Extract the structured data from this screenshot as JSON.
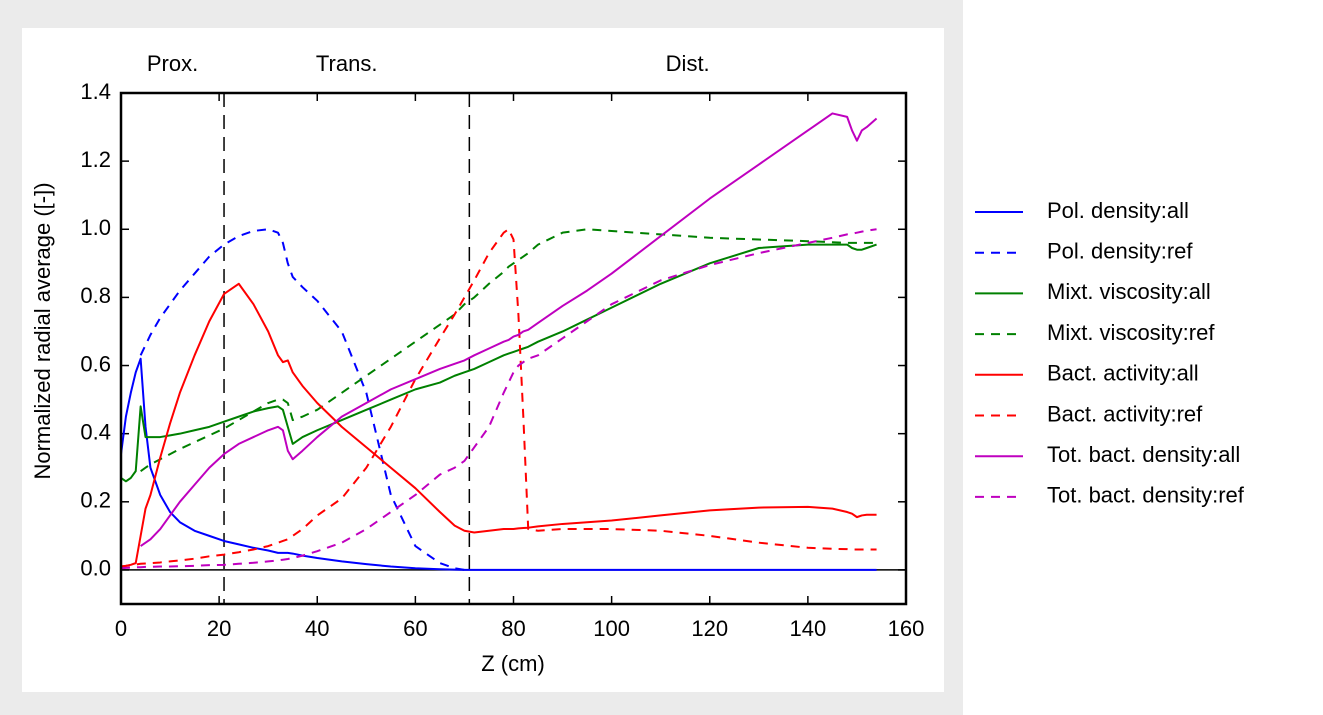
{
  "chart_data": {
    "type": "line",
    "xlabel": "Z (cm)",
    "ylabel": "Normalized radial average ([-])",
    "regions": [
      "Prox.",
      "Trans.",
      "Dist."
    ],
    "region_bounds": [
      21,
      71
    ],
    "xlim": [
      0,
      160
    ],
    "ylim": [
      -0.1,
      1.4
    ],
    "xticks": [
      0,
      20,
      40,
      60,
      80,
      100,
      120,
      140,
      160
    ],
    "yticks": [
      {
        "value": 0,
        "label": "0.0"
      },
      0.2,
      0.4,
      0.6,
      0.8,
      {
        "value": 1,
        "label": "1.0"
      },
      1.2,
      1.4
    ],
    "legend": "outside right",
    "x": [
      0,
      1,
      2,
      3,
      4,
      5,
      6,
      8,
      10,
      12,
      15,
      18,
      21,
      24,
      27,
      30,
      32,
      33,
      34,
      35,
      37,
      40,
      45,
      50,
      55,
      60,
      65,
      68,
      70,
      72,
      75,
      78,
      79,
      80,
      81,
      82,
      83,
      85,
      90,
      95,
      100,
      110,
      120,
      130,
      140,
      145,
      148,
      149,
      150,
      151,
      152,
      154
    ],
    "series": [
      {
        "name": "Pol. density:all",
        "color": "#0000ff",
        "style": "solid",
        "values": [
          0.34,
          0.45,
          0.52,
          0.58,
          0.62,
          0.42,
          0.3,
          0.22,
          0.17,
          0.14,
          0.115,
          0.1,
          0.085,
          0.075,
          0.065,
          0.057,
          0.05,
          0.05,
          0.05,
          0.048,
          0.042,
          0.035,
          0.025,
          0.017,
          0.01,
          0.005,
          0.002,
          0.001,
          0,
          0,
          0,
          0,
          0,
          0,
          0,
          0,
          0,
          0,
          0,
          0,
          0,
          0,
          0,
          0,
          0,
          0,
          0,
          0,
          0,
          0,
          0,
          0
        ]
      },
      {
        "name": "Pol. density:ref",
        "color": "#0000ff",
        "style": "dashed",
        "values": [
          null,
          null,
          null,
          null,
          0.63,
          0.66,
          0.69,
          0.74,
          0.78,
          0.82,
          0.87,
          0.92,
          0.955,
          0.98,
          0.995,
          1.0,
          0.99,
          0.96,
          0.9,
          0.86,
          0.83,
          0.79,
          0.7,
          0.52,
          0.22,
          0.07,
          0.02,
          0.005,
          0,
          null,
          null,
          null,
          null,
          null,
          null,
          null,
          null,
          null,
          null,
          null,
          null,
          null,
          null,
          null,
          null,
          null,
          null,
          null,
          null,
          null,
          null,
          null
        ]
      },
      {
        "name": "Mixt. viscosity:all",
        "color": "#008000",
        "style": "solid",
        "values": [
          0.27,
          0.26,
          0.27,
          0.29,
          0.48,
          0.39,
          0.39,
          0.39,
          0.395,
          0.4,
          0.41,
          0.42,
          0.435,
          0.45,
          0.465,
          0.475,
          0.48,
          0.47,
          0.42,
          0.37,
          0.39,
          0.41,
          0.44,
          0.47,
          0.5,
          0.53,
          0.55,
          0.57,
          0.58,
          0.59,
          0.61,
          0.63,
          0.635,
          0.64,
          0.645,
          0.65,
          0.655,
          0.67,
          0.7,
          0.735,
          0.77,
          0.84,
          0.9,
          0.945,
          0.955,
          0.955,
          0.955,
          0.945,
          0.94,
          0.94,
          0.945,
          0.955
        ]
      },
      {
        "name": "Mixt. viscosity:ref",
        "color": "#008000",
        "style": "dashed",
        "values": [
          null,
          null,
          null,
          null,
          0.29,
          0.3,
          0.31,
          0.325,
          0.34,
          0.355,
          0.375,
          0.395,
          0.415,
          0.44,
          0.465,
          0.49,
          0.5,
          0.5,
          0.49,
          0.44,
          0.45,
          0.47,
          0.52,
          0.57,
          0.62,
          0.67,
          0.72,
          0.75,
          0.78,
          0.8,
          0.84,
          0.875,
          0.89,
          0.9,
          0.91,
          0.92,
          0.93,
          0.955,
          0.99,
          1.0,
          0.995,
          0.985,
          0.975,
          0.97,
          0.965,
          0.962,
          0.96,
          0.96,
          0.96,
          0.96,
          0.96,
          0.96
        ]
      },
      {
        "name": "Bact. activity:all",
        "color": "#ff0000",
        "style": "solid",
        "values": [
          0.01,
          0.012,
          0.015,
          0.02,
          0.1,
          0.18,
          0.22,
          0.33,
          0.43,
          0.52,
          0.63,
          0.73,
          0.81,
          0.84,
          0.78,
          0.7,
          0.63,
          0.61,
          0.615,
          0.58,
          0.54,
          0.49,
          0.42,
          0.36,
          0.3,
          0.24,
          0.17,
          0.13,
          0.115,
          0.11,
          0.115,
          0.12,
          0.12,
          0.12,
          0.122,
          0.123,
          0.124,
          0.128,
          0.135,
          0.14,
          0.145,
          0.16,
          0.175,
          0.183,
          0.185,
          0.18,
          0.17,
          0.165,
          0.155,
          0.16,
          0.162,
          0.162
        ]
      },
      {
        "name": "Bact. activity:ref",
        "color": "#ff0000",
        "style": "dashed",
        "values": [
          0.01,
          0.012,
          0.014,
          0.016,
          0.018,
          0.019,
          0.02,
          0.022,
          0.025,
          0.028,
          0.033,
          0.04,
          0.045,
          0.052,
          0.06,
          0.07,
          0.08,
          0.085,
          0.09,
          0.1,
          0.12,
          0.16,
          0.21,
          0.3,
          0.42,
          0.56,
          0.68,
          0.75,
          0.8,
          0.85,
          0.93,
          0.99,
          1.0,
          0.97,
          0.75,
          0.45,
          0.12,
          0.115,
          0.12,
          0.12,
          0.12,
          0.115,
          0.1,
          0.08,
          0.065,
          0.062,
          0.061,
          0.06,
          0.06,
          0.06,
          0.06,
          0.06
        ]
      },
      {
        "name": "Tot. bact. density:all",
        "color": "#bf00bf",
        "style": "solid",
        "values": [
          null,
          null,
          null,
          null,
          0.07,
          0.08,
          0.09,
          0.12,
          0.16,
          0.2,
          0.25,
          0.3,
          0.34,
          0.37,
          0.39,
          0.41,
          0.42,
          0.41,
          0.35,
          0.325,
          0.35,
          0.39,
          0.45,
          0.49,
          0.53,
          0.56,
          0.59,
          0.605,
          0.615,
          0.63,
          0.65,
          0.67,
          0.675,
          0.685,
          0.69,
          0.7,
          0.705,
          0.725,
          0.775,
          0.82,
          0.87,
          0.98,
          1.09,
          1.19,
          1.29,
          1.34,
          1.33,
          1.29,
          1.26,
          1.29,
          1.3,
          1.325
        ]
      },
      {
        "name": "Tot. bact. density:ref",
        "color": "#bf00bf",
        "style": "dashed",
        "values": [
          0.005,
          0.006,
          0.007,
          0.008,
          0.008,
          0.009,
          0.009,
          0.01,
          0.01,
          0.011,
          0.012,
          0.014,
          0.015,
          0.018,
          0.021,
          0.025,
          0.028,
          0.03,
          0.032,
          0.035,
          0.042,
          0.055,
          0.08,
          0.12,
          0.17,
          0.22,
          0.28,
          0.3,
          0.32,
          0.36,
          0.42,
          0.52,
          0.55,
          0.58,
          0.6,
          0.61,
          0.62,
          0.63,
          0.68,
          0.73,
          0.78,
          0.85,
          0.895,
          0.93,
          0.96,
          0.975,
          0.985,
          0.987,
          0.99,
          0.993,
          0.996,
          1.0
        ]
      }
    ]
  }
}
